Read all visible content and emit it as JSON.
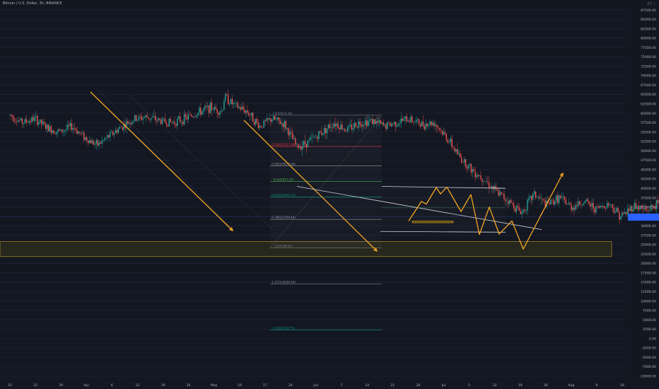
{
  "header": {
    "symbol_title": "Bitcoin / U.S. Dollar, 3h, BINANCE",
    "corner_label": "€7 ◌"
  },
  "colors": {
    "background": "#131722",
    "candle_up": "#26a69a",
    "candle_down": "#ef5350",
    "projection": "#f5a623",
    "channel": "#d1d4dc",
    "zone_fill": "#2a2a1c",
    "zone_border": "#c9a227",
    "price_tag": "#2962ff",
    "fib_0": "#787b86",
    "fib_0236": "#f23645",
    "fib_0382": "#9598a1",
    "fib_05": "#4caf50",
    "fib_0618": "#089981",
    "fib_0786": "#9598a1",
    "fib_1": "#787b86",
    "fib_1272": "#9598a1",
    "fib_1618": "#089981"
  },
  "chart_data": {
    "type": "candlestick",
    "title": "Bitcoin / U.S. Dollar, 3h, BINANCE",
    "x_tick_labels": [
      "15",
      "22",
      "29",
      "Apr",
      "6",
      "12",
      "19",
      "26",
      "May",
      "10",
      "17",
      "24",
      "Jun",
      "7",
      "14",
      "21",
      "28",
      "Jul",
      "5",
      "12",
      "19",
      "26",
      "Aug",
      "9",
      "16"
    ],
    "y_tick_labels": [
      "87500.00",
      "85000.00",
      "82500.00",
      "80000.00",
      "77500.00",
      "75000.00",
      "72500.00",
      "70000.00",
      "67500.00",
      "65000.00",
      "62500.00",
      "60000.00",
      "57500.00",
      "55000.00",
      "52500.00",
      "50000.00",
      "47500.00",
      "45000.00",
      "42500.00",
      "40000.00",
      "37500.00",
      "35000.00",
      "32500.00",
      "30000.00",
      "27500.00",
      "25000.00",
      "22500.00",
      "20000.00",
      "17500.00",
      "15000.00",
      "12500.00",
      "10000.00",
      "7500.00",
      "5000.00",
      "2500.00",
      "0.00",
      "-2500.00",
      "-5000.00",
      "-7500.00",
      "-10000.00"
    ],
    "ylim": [
      -11000,
      89000
    ],
    "price_path": [
      [
        0,
        59500
      ],
      [
        0.5,
        57500
      ],
      [
        1,
        58500
      ],
      [
        1.5,
        56000
      ],
      [
        2,
        55000
      ],
      [
        2.5,
        56500
      ],
      [
        3,
        53500
      ],
      [
        3.5,
        51500
      ],
      [
        4,
        54000
      ],
      [
        4.5,
        56500
      ],
      [
        5,
        58500
      ],
      [
        5.5,
        59000
      ],
      [
        6,
        58000
      ],
      [
        6.5,
        57500
      ],
      [
        7,
        58500
      ],
      [
        7.5,
        60000
      ],
      [
        8,
        61500
      ],
      [
        8.5,
        60500
      ],
      [
        8.6,
        64500
      ],
      [
        9,
        62000
      ],
      [
        9.5,
        60500
      ],
      [
        10,
        56500
      ],
      [
        10.5,
        58500
      ],
      [
        11,
        57000
      ],
      [
        11.5,
        51000
      ],
      [
        12,
        52500
      ],
      [
        12.5,
        55000
      ],
      [
        13,
        57500
      ],
      [
        13.5,
        55500
      ],
      [
        14,
        57500
      ],
      [
        14.5,
        58000
      ],
      [
        15,
        56500
      ],
      [
        15.5,
        57500
      ],
      [
        16,
        58500
      ],
      [
        16.5,
        57000
      ],
      [
        17,
        57500
      ],
      [
        17.5,
        53500
      ],
      [
        18,
        48500
      ],
      [
        18.5,
        45000
      ],
      [
        19,
        42500
      ],
      [
        19.5,
        39000
      ],
      [
        20,
        36500
      ],
      [
        20.5,
        33500
      ],
      [
        21,
        38500
      ],
      [
        21.5,
        35500
      ],
      [
        22,
        37500
      ],
      [
        22.5,
        35000
      ],
      [
        23,
        36500
      ],
      [
        23.5,
        34500
      ],
      [
        24,
        36000
      ],
      [
        24.5,
        32500
      ],
      [
        25,
        35500
      ],
      [
        25.5,
        34000
      ],
      [
        26,
        36000
      ],
      [
        26.5,
        38500
      ],
      [
        27,
        39500
      ],
      [
        27.5,
        38000
      ],
      [
        28,
        35500
      ],
      [
        28.5,
        33500
      ],
      [
        29,
        31500
      ],
      [
        29.5,
        32500
      ],
      [
        30,
        34500
      ],
      [
        30.5,
        35000
      ]
    ],
    "fibonacci": [
      {
        "label": "0(59474.49)",
        "value": 59474.49
      },
      {
        "label": "0.236(51137.69)",
        "value": 51137.69
      },
      {
        "label": "0.382(45979.96)",
        "value": 45979.96
      },
      {
        "label": "0.5(41811.55)",
        "value": 41811.55
      },
      {
        "label": "0.618(37643.14)",
        "value": 37643.14
      },
      {
        "label": "0.786(31709.49)",
        "value": 31709.49
      },
      {
        "label": "1(24148.61)",
        "value": 24148.61
      },
      {
        "label": "1.272(14539.34)",
        "value": 14539.34
      },
      {
        "label": "1.618(2318.75)",
        "value": 2318.75
      }
    ],
    "current_price": 32400,
    "support_zone": [
      21800,
      25800
    ],
    "projection_path": [
      [
        30.5,
        33000
      ],
      [
        31.2,
        36500
      ],
      [
        31.6,
        35800
      ],
      [
        32.3,
        40200
      ],
      [
        32.7,
        38500
      ],
      [
        33.1,
        40300
      ],
      [
        33.9,
        33800
      ],
      [
        34.6,
        38300
      ],
      [
        35.9,
        27700
      ],
      [
        36.8,
        35000
      ],
      [
        37.5,
        27800
      ],
      [
        38.3,
        31300
      ],
      [
        39.4,
        23800
      ],
      [
        41.1,
        44000
      ]
    ],
    "channel_upper": [
      [
        30.5,
        40500
      ],
      [
        39.3,
        40000
      ]
    ],
    "channel_lower": [
      [
        30.5,
        28500
      ],
      [
        38.9,
        28300
      ]
    ]
  }
}
